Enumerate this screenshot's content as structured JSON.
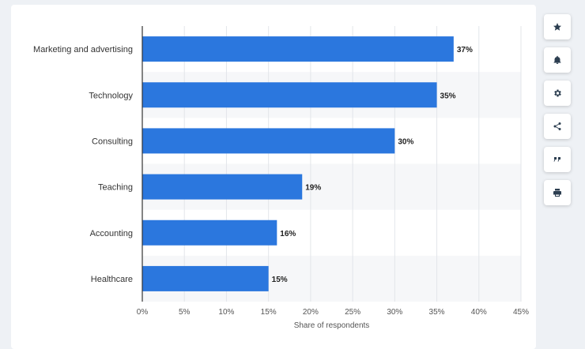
{
  "chart_data": {
    "type": "bar",
    "orientation": "horizontal",
    "categories": [
      "Marketing and advertising",
      "Technology",
      "Consulting",
      "Teaching",
      "Accounting",
      "Healthcare"
    ],
    "values": [
      37,
      35,
      30,
      19,
      16,
      15
    ],
    "value_labels": [
      "37%",
      "35%",
      "30%",
      "19%",
      "16%",
      "15%"
    ],
    "xlabel": "Share of respondents",
    "xlim": [
      0,
      45
    ],
    "xticks": [
      0,
      5,
      10,
      15,
      20,
      25,
      30,
      35,
      40,
      45
    ],
    "xtick_labels": [
      "0%",
      "5%",
      "10%",
      "15%",
      "20%",
      "25%",
      "30%",
      "35%",
      "40%",
      "45%"
    ],
    "grid": true,
    "bar_color": "#2b77de"
  },
  "toolbar": {
    "icons": [
      "star-icon",
      "bell-icon",
      "gear-icon",
      "share-icon",
      "quote-icon",
      "print-icon"
    ]
  }
}
